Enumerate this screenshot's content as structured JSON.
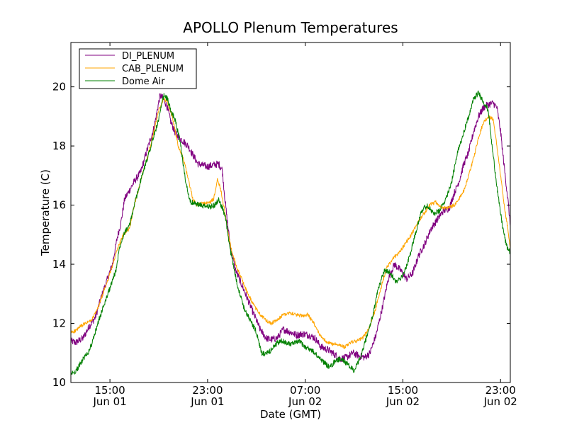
{
  "chart_data": {
    "type": "line",
    "title": "APOLLO Plenum Temperatures",
    "xlabel": "Date (GMT)",
    "ylabel": "Temperature (C)",
    "x_unit": "hours since Jun 01 00:00 GMT",
    "xlim": [
      11.8,
      47.8
    ],
    "ylim": [
      10,
      21.5
    ],
    "yticks": [
      10,
      12,
      14,
      16,
      18,
      20
    ],
    "xticks": [
      {
        "value": 15,
        "time": "15:00",
        "date": "Jun 01"
      },
      {
        "value": 23,
        "time": "23:00",
        "date": "Jun 01"
      },
      {
        "value": 31,
        "time": "07:00",
        "date": "Jun 02"
      },
      {
        "value": 39,
        "time": "15:00",
        "date": "Jun 02"
      },
      {
        "value": 47,
        "time": "23:00",
        "date": "Jun 02"
      }
    ],
    "grid": false,
    "legend_position": "top-left",
    "series": [
      {
        "name": "DI_PLENUM",
        "color": "#800080",
        "noise": 0.12,
        "x": [
          11.8,
          12.2,
          12.8,
          13.3,
          13.8,
          14.3,
          14.8,
          15.2,
          15.6,
          15.9,
          16.2,
          16.6,
          17.0,
          17.5,
          18.0,
          18.6,
          19.1,
          19.4,
          19.7,
          20.0,
          20.4,
          20.9,
          21.4,
          21.8,
          22.2,
          22.6,
          23.0,
          23.4,
          23.9,
          24.2,
          24.4,
          24.6,
          24.9,
          25.3,
          25.8,
          26.3,
          26.8,
          27.3,
          27.8,
          28.2,
          28.7,
          29.2,
          29.8,
          30.3,
          30.8,
          31.3,
          31.8,
          32.3,
          32.9,
          33.4,
          33.9,
          34.4,
          34.9,
          35.4,
          35.9,
          36.3,
          36.8,
          37.3,
          37.8,
          38.3,
          38.8,
          39.3,
          39.8,
          40.3,
          40.8,
          41.3,
          41.8,
          42.3,
          42.8,
          43.2,
          43.6,
          44.0,
          44.4,
          44.8,
          45.2,
          45.6,
          46.0,
          46.4,
          46.7,
          47.0,
          47.3,
          47.6,
          47.8
        ],
        "y": [
          11.4,
          11.35,
          11.5,
          11.9,
          12.2,
          12.9,
          13.5,
          14.0,
          14.9,
          15.4,
          16.2,
          16.5,
          16.8,
          17.1,
          17.8,
          18.6,
          19.7,
          19.6,
          19.3,
          18.8,
          18.4,
          18.2,
          18.0,
          17.7,
          17.4,
          17.35,
          17.3,
          17.35,
          17.4,
          17.2,
          16.3,
          15.5,
          14.5,
          13.8,
          13.3,
          12.8,
          12.3,
          11.8,
          11.5,
          11.45,
          11.5,
          11.8,
          11.7,
          11.6,
          11.65,
          11.6,
          11.5,
          11.2,
          11.1,
          10.95,
          10.8,
          10.85,
          11.0,
          10.9,
          10.85,
          11.0,
          11.6,
          12.5,
          13.5,
          14.0,
          13.8,
          13.5,
          13.7,
          14.3,
          14.7,
          15.2,
          15.5,
          15.8,
          15.9,
          16.4,
          16.8,
          17.4,
          17.8,
          18.5,
          19.0,
          19.3,
          19.4,
          19.45,
          19.3,
          18.5,
          17.3,
          16.2,
          15.3
        ]
      },
      {
        "name": "CAB_PLENUM",
        "color": "#ffa500",
        "noise": 0.06,
        "x": [
          11.8,
          12.2,
          12.6,
          13.0,
          13.5,
          14.0,
          14.6,
          15.1,
          15.6,
          16.1,
          16.6,
          17.0,
          17.5,
          18.0,
          18.5,
          19.0,
          19.4,
          19.7,
          20.1,
          20.6,
          21.0,
          21.4,
          21.8,
          22.1,
          22.4,
          22.8,
          23.2,
          23.5,
          23.8,
          24.1,
          24.4,
          24.7,
          25.0,
          25.4,
          25.8,
          26.3,
          26.8,
          27.3,
          27.8,
          28.2,
          28.7,
          29.2,
          29.7,
          30.2,
          30.7,
          31.2,
          31.7,
          32.2,
          32.7,
          33.2,
          33.7,
          34.2,
          34.7,
          35.2,
          35.7,
          36.2,
          36.7,
          37.2,
          37.7,
          38.2,
          38.7,
          39.2,
          39.7,
          40.2,
          40.7,
          41.2,
          41.7,
          42.2,
          42.7,
          43.2,
          43.6,
          44.0,
          44.4,
          44.8,
          45.2,
          45.6,
          46.0,
          46.4,
          46.7,
          47.0,
          47.3,
          47.6,
          47.8
        ],
        "y": [
          11.7,
          11.75,
          11.9,
          12.0,
          12.1,
          12.5,
          13.2,
          13.8,
          14.5,
          15.0,
          15.2,
          16.0,
          16.8,
          17.5,
          18.3,
          19.2,
          19.6,
          19.5,
          19.0,
          18.0,
          17.6,
          16.9,
          16.2,
          16.0,
          16.05,
          16.05,
          16.1,
          16.2,
          16.9,
          16.5,
          15.8,
          15.0,
          14.4,
          13.9,
          13.5,
          13.0,
          12.6,
          12.3,
          12.1,
          12.0,
          12.1,
          12.3,
          12.35,
          12.3,
          12.25,
          12.3,
          12.0,
          11.6,
          11.4,
          11.3,
          11.3,
          11.2,
          11.35,
          11.4,
          11.5,
          11.8,
          12.4,
          13.2,
          13.9,
          14.2,
          14.4,
          14.7,
          15.0,
          15.4,
          15.7,
          16.0,
          16.1,
          15.9,
          15.9,
          16.0,
          16.2,
          16.5,
          17.0,
          17.6,
          18.3,
          18.8,
          19.0,
          18.9,
          18.0,
          17.0,
          16.0,
          15.2,
          14.5
        ]
      },
      {
        "name": "Dome Air",
        "color": "#008000",
        "noise": 0.09,
        "x": [
          11.8,
          12.1,
          12.4,
          12.8,
          13.2,
          13.6,
          14.0,
          14.5,
          15.0,
          15.5,
          15.8,
          16.2,
          16.6,
          17.0,
          17.5,
          18.0,
          18.5,
          19.0,
          19.4,
          19.7,
          20.0,
          20.4,
          20.8,
          21.2,
          21.6,
          22.0,
          22.4,
          22.8,
          23.2,
          23.6,
          23.9,
          24.2,
          24.5,
          24.8,
          25.1,
          25.5,
          26.0,
          26.5,
          27.0,
          27.4,
          27.8,
          28.2,
          28.6,
          29.0,
          29.5,
          30.0,
          30.5,
          31.0,
          31.5,
          32.0,
          32.5,
          33.0,
          33.5,
          34.0,
          34.5,
          35.0,
          35.5,
          36.0,
          36.5,
          37.0,
          37.5,
          38.0,
          38.5,
          39.0,
          39.5,
          40.0,
          40.5,
          41.0,
          41.5,
          42.0,
          42.5,
          43.0,
          43.5,
          44.0,
          44.4,
          44.8,
          45.2,
          45.6,
          46.0,
          46.3,
          46.6,
          46.9,
          47.2,
          47.5,
          47.8
        ],
        "y": [
          10.3,
          10.35,
          10.5,
          10.8,
          11.0,
          11.4,
          12.0,
          12.6,
          13.2,
          13.8,
          14.6,
          15.1,
          15.3,
          16.0,
          16.8,
          17.5,
          18.2,
          18.9,
          19.7,
          19.6,
          19.2,
          18.8,
          18.0,
          16.8,
          16.1,
          16.05,
          16.0,
          15.95,
          15.95,
          16.0,
          16.2,
          15.9,
          15.5,
          14.6,
          14.0,
          13.2,
          12.5,
          12.1,
          11.7,
          11.0,
          10.95,
          11.1,
          11.3,
          11.4,
          11.35,
          11.3,
          11.4,
          11.2,
          11.1,
          10.9,
          10.7,
          10.5,
          10.75,
          10.8,
          10.6,
          10.4,
          10.8,
          11.5,
          12.2,
          13.2,
          13.8,
          13.7,
          13.4,
          13.6,
          14.2,
          15.0,
          15.8,
          16.0,
          15.7,
          15.8,
          16.2,
          16.8,
          17.8,
          18.5,
          19.0,
          19.6,
          19.8,
          19.5,
          19.2,
          18.0,
          17.0,
          16.0,
          15.2,
          14.6,
          14.4
        ]
      }
    ]
  }
}
